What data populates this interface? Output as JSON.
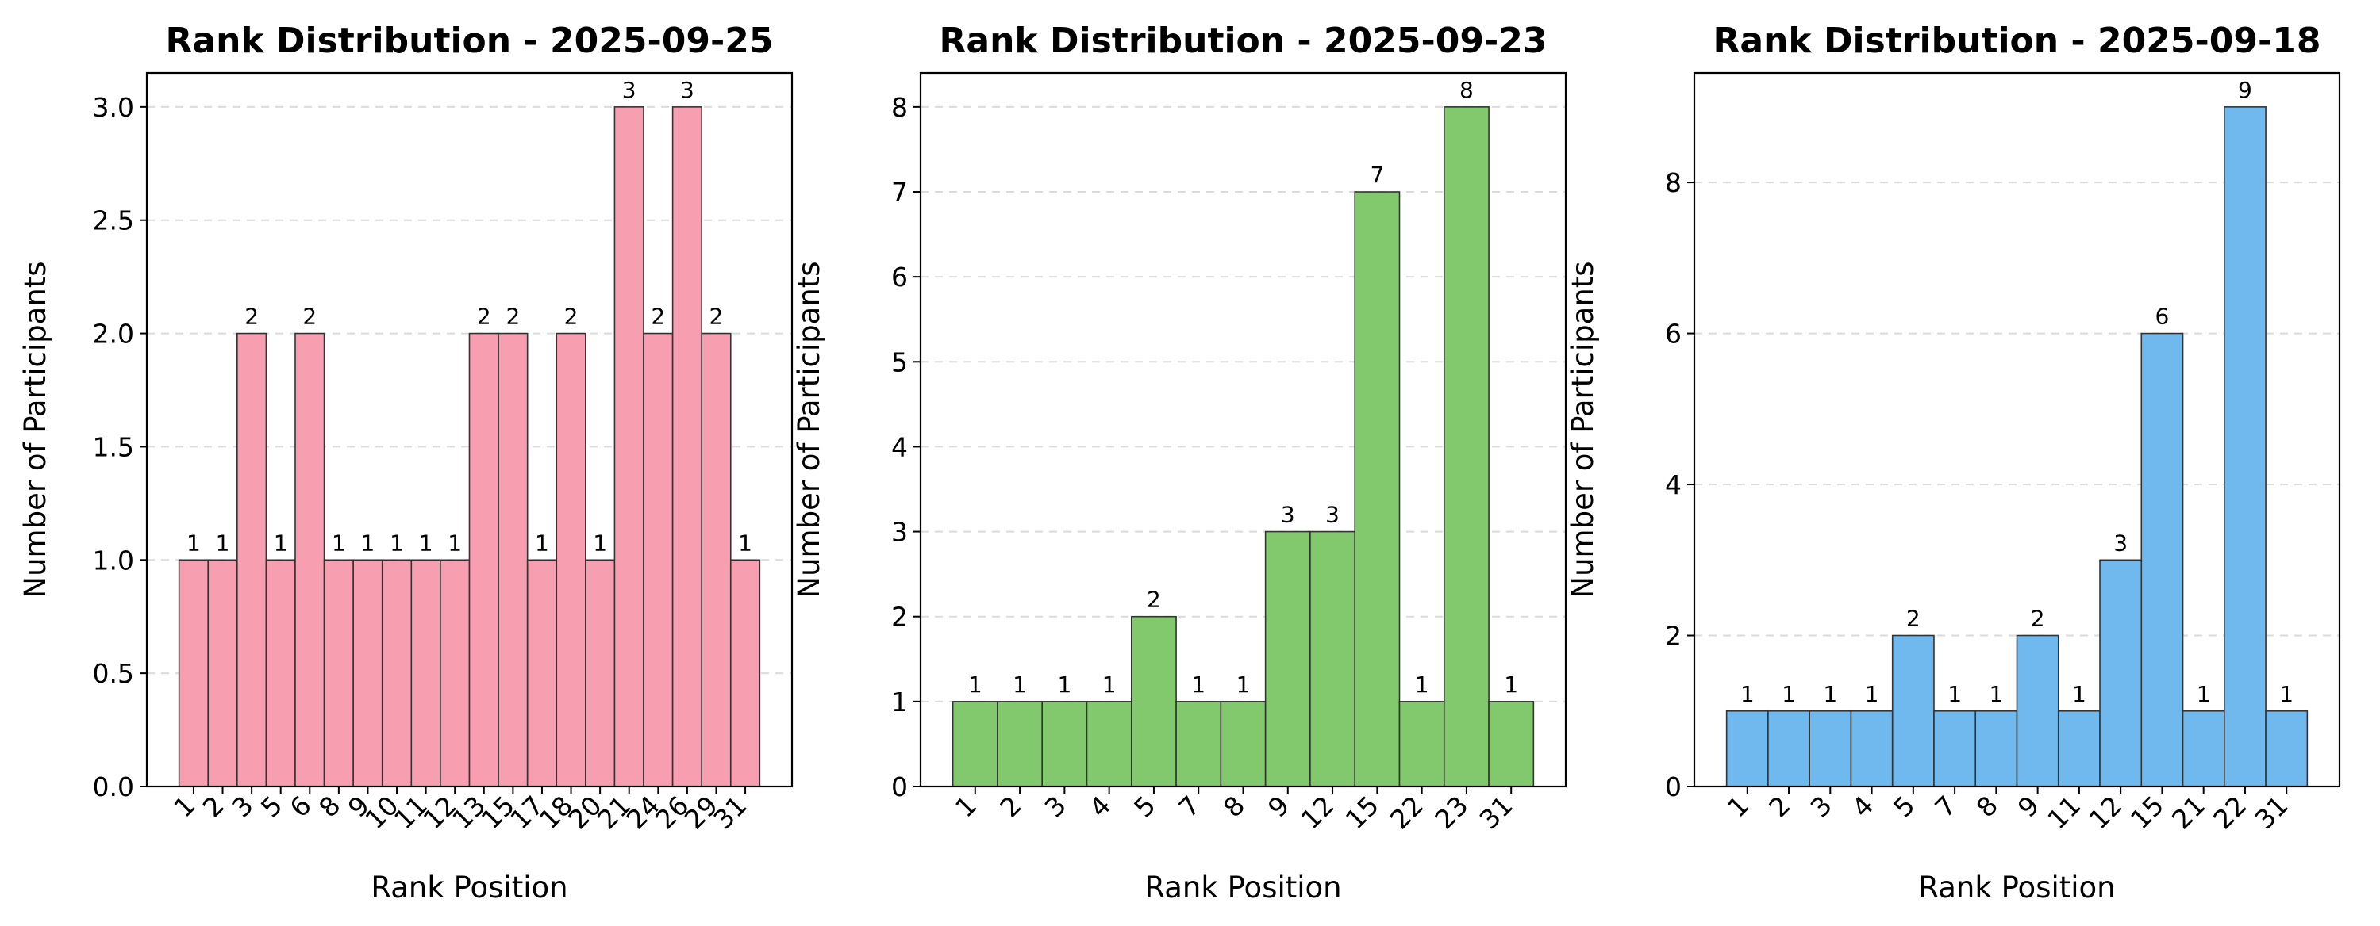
{
  "chart_data": [
    {
      "type": "bar",
      "title": "Rank Distribution - 2025-09-25",
      "xlabel": "Rank Position",
      "ylabel": "Number of Participants",
      "color": "#f79fb1",
      "categories": [
        "1",
        "2",
        "3",
        "5",
        "6",
        "8",
        "9",
        "10",
        "11",
        "12",
        "13",
        "15",
        "17",
        "18",
        "20",
        "21",
        "24",
        "26",
        "29",
        "31"
      ],
      "values": [
        1,
        1,
        2,
        1,
        2,
        1,
        1,
        1,
        1,
        1,
        2,
        2,
        1,
        2,
        1,
        3,
        2,
        3,
        2,
        1
      ],
      "ylim": [
        0,
        3.15
      ],
      "yticks": [
        0,
        0.5,
        1.0,
        1.5,
        2.0,
        2.5,
        3.0
      ],
      "ytick_labels": [
        "0.0",
        "0.5",
        "1.0",
        "1.5",
        "2.0",
        "2.5",
        "3.0"
      ],
      "grid": "y-dashed"
    },
    {
      "type": "bar",
      "title": "Rank Distribution - 2025-09-23",
      "xlabel": "Rank Position",
      "ylabel": "Number of Participants",
      "color": "#82c86d",
      "categories": [
        "1",
        "2",
        "3",
        "4",
        "5",
        "7",
        "8",
        "9",
        "12",
        "15",
        "22",
        "23",
        "31"
      ],
      "values": [
        1,
        1,
        1,
        1,
        2,
        1,
        1,
        3,
        3,
        7,
        1,
        8,
        1
      ],
      "ylim": [
        0,
        8.4
      ],
      "yticks": [
        0,
        1,
        2,
        3,
        4,
        5,
        6,
        7,
        8
      ],
      "ytick_labels": [
        "0",
        "1",
        "2",
        "3",
        "4",
        "5",
        "6",
        "7",
        "8"
      ],
      "grid": "y-dashed"
    },
    {
      "type": "bar",
      "title": "Rank Distribution - 2025-09-18",
      "xlabel": "Rank Position",
      "ylabel": "Number of Participants",
      "color": "#6fb9ee",
      "categories": [
        "1",
        "2",
        "3",
        "4",
        "5",
        "7",
        "8",
        "9",
        "11",
        "12",
        "15",
        "21",
        "22",
        "31"
      ],
      "values": [
        1,
        1,
        1,
        1,
        2,
        1,
        1,
        2,
        1,
        3,
        6,
        1,
        9,
        1
      ],
      "ylim": [
        0,
        9.45
      ],
      "yticks": [
        0,
        2,
        4,
        6,
        8
      ],
      "ytick_labels": [
        "0",
        "2",
        "4",
        "6",
        "8"
      ],
      "grid": "y-dashed"
    }
  ]
}
